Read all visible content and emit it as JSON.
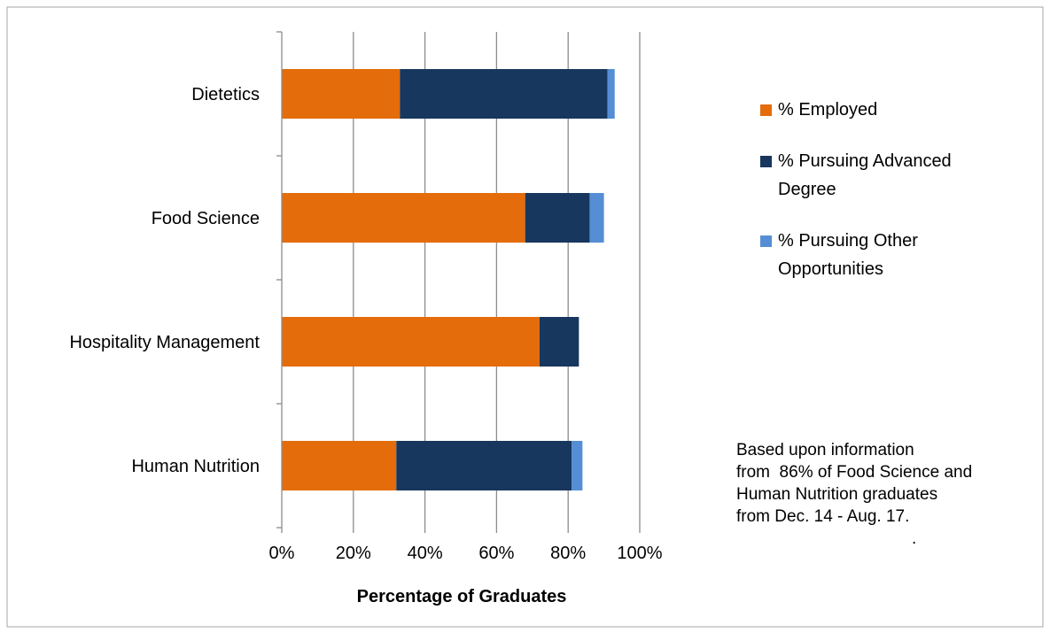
{
  "chart_data": {
    "type": "bar",
    "orientation": "horizontal",
    "stacked": true,
    "categories": [
      "Human Nutrition",
      "Hospitality Management",
      "Food Science",
      "Dietetics"
    ],
    "series": [
      {
        "name": "% Employed",
        "values": [
          32,
          72,
          68,
          33
        ],
        "color": "#E46C0A"
      },
      {
        "name": "% Pursuing Advanced Degree",
        "values": [
          49,
          11,
          18,
          58
        ],
        "color": "#17375E"
      },
      {
        "name": "% Pursuing Other Opportunities",
        "values": [
          3,
          0,
          4,
          2
        ],
        "color": "#558ED5"
      }
    ],
    "xlabel": "Percentage of Graduates",
    "xlim": [
      0,
      100
    ],
    "xticks": [
      "0%",
      "20%",
      "40%",
      "60%",
      "80%",
      "100%"
    ],
    "grid": true,
    "legend_position": "right",
    "legend_entries": [
      {
        "lines": [
          "% Employed"
        ],
        "color": "#E46C0A"
      },
      {
        "lines": [
          "% Pursuing Advanced",
          "Degree"
        ],
        "color": "#17375E"
      },
      {
        "lines": [
          "% Pursuing Other",
          "Opportunities"
        ],
        "color": "#558ED5"
      }
    ],
    "annotation": {
      "lines": [
        "Based upon information",
        "from  86% of Food Science and",
        "Human Nutrition graduates",
        "from Dec. 14 - Aug. 17."
      ],
      "trailing": "."
    }
  }
}
